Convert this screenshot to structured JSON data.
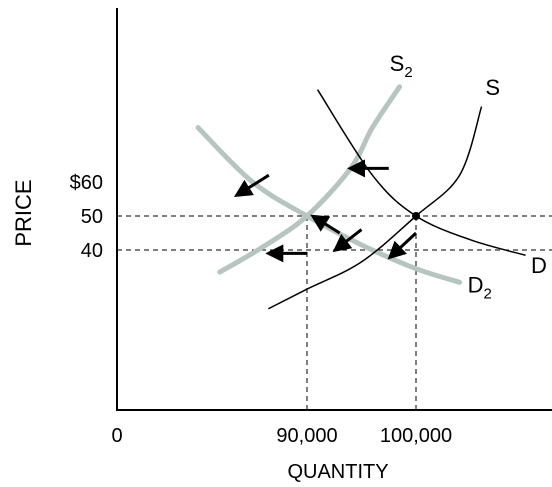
{
  "chart_data": {
    "type": "line",
    "xlabel": "QUANTITY",
    "ylabel": "PRICE",
    "x_ticks": [
      {
        "value": 0,
        "label": "0"
      },
      {
        "value": 90000,
        "label": "90,000"
      },
      {
        "value": 100000,
        "label": "100,000"
      }
    ],
    "y_ticks": [
      {
        "value": 60,
        "label": "$60"
      },
      {
        "value": 50,
        "label": "50"
      },
      {
        "value": 40,
        "label": "40"
      }
    ],
    "equilibrium_points": [
      {
        "x": 100000,
        "y": 50
      },
      {
        "x": 90000,
        "y": 50
      }
    ],
    "series": [
      {
        "name": "S",
        "style": "thin",
        "color": "#000000",
        "x": [
          86500,
          90000,
          95000,
          100000,
          104000,
          106000
        ],
        "y": [
          22.8,
          28.5,
          36.5,
          50,
          62,
          82
        ]
      },
      {
        "name": "D",
        "style": "thin",
        "color": "#000000",
        "x": [
          91000,
          96000,
          100000,
          105000,
          110000
        ],
        "y": [
          87,
          62,
          50,
          43,
          38.5
        ]
      },
      {
        "name": "S2",
        "style": "thick",
        "color": "#b7c5c0",
        "x": [
          82000,
          86000,
          90000,
          94000,
          96000,
          98500
        ],
        "y": [
          33.5,
          41,
          50,
          64,
          76,
          88
        ]
      },
      {
        "name": "D2",
        "style": "thick",
        "color": "#b7c5c0",
        "x": [
          80000,
          85000,
          90000,
          95000,
          100000,
          104000
        ],
        "y": [
          76,
          60,
          50,
          41.5,
          34.5,
          30.5
        ]
      }
    ],
    "curve_labels": [
      {
        "series": "S",
        "text": "S",
        "sub": ""
      },
      {
        "series": "D",
        "text": "D",
        "sub": ""
      },
      {
        "series": "S2",
        "text": "S",
        "sub": "2"
      },
      {
        "series": "D2",
        "text": "D",
        "sub": "2"
      }
    ],
    "shift_arrows": [
      {
        "from": [
          97500,
          64
        ],
        "to": [
          94500,
          64
        ]
      },
      {
        "from": [
          86500,
          62
        ],
        "to": [
          84000,
          57
        ]
      },
      {
        "from": [
          93000,
          45
        ],
        "to": [
          91000,
          49
        ]
      },
      {
        "from": [
          95000,
          46
        ],
        "to": [
          93000,
          41
        ]
      },
      {
        "from": [
          100000,
          45
        ],
        "to": [
          98000,
          39
        ]
      },
      {
        "from": [
          90000,
          39
        ],
        "to": [
          87000,
          39
        ]
      }
    ],
    "xlim": [
      73000,
      113000
    ],
    "ylim": [
      0,
      100
    ]
  }
}
